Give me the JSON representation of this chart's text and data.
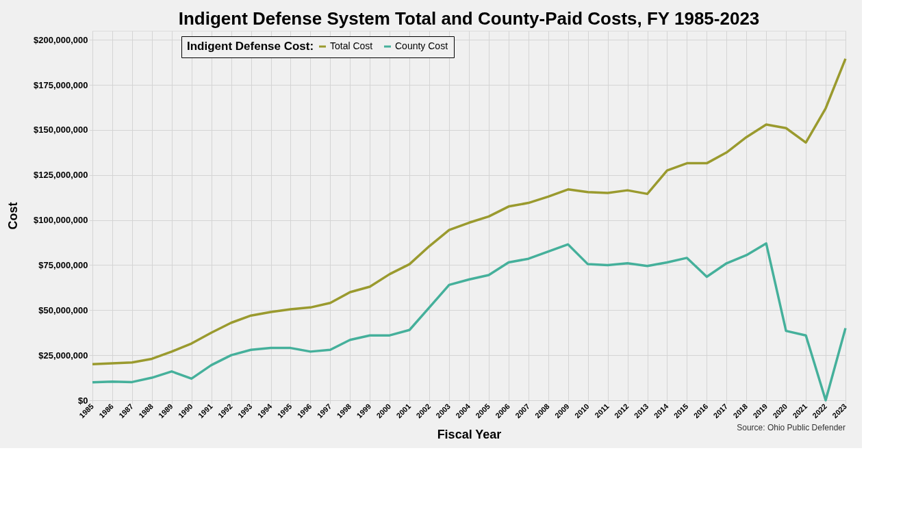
{
  "chart_data": {
    "type": "line",
    "title": "Indigent Defense System Total and County-Paid Costs, FY 1985-2023",
    "xlabel": "Fiscal Year",
    "ylabel": "Cost",
    "legend_title": "Indigent Defense Cost:",
    "legend": "top left",
    "grid": true,
    "line_style": "solid",
    "marker": "none",
    "categories": [
      "1985",
      "1986",
      "1987",
      "1988",
      "1989",
      "1990",
      "1991",
      "1992",
      "1993",
      "1994",
      "1995",
      "1996",
      "1997",
      "1998",
      "1999",
      "2000",
      "2001",
      "2002",
      "2003",
      "2004",
      "2005",
      "2006",
      "2007",
      "2008",
      "2009",
      "2010",
      "2011",
      "2012",
      "2013",
      "2014",
      "2015",
      "2016",
      "2017",
      "2018",
      "2019",
      "2020",
      "2021",
      "2022",
      "2023"
    ],
    "series": [
      {
        "name": "Total Cost",
        "color": "#9a9a2e",
        "values": [
          20000000,
          20500000,
          21000000,
          23000000,
          27000000,
          31500000,
          37500000,
          43000000,
          47000000,
          49000000,
          50500000,
          51500000,
          54000000,
          60000000,
          63000000,
          70000000,
          75500000,
          85500000,
          94500000,
          98500000,
          102000000,
          107500000,
          109500000,
          113000000,
          117000000,
          115500000,
          115000000,
          116500000,
          114500000,
          127500000,
          131500000,
          131500000,
          137500000,
          146000000,
          153000000,
          151000000,
          143000000,
          162000000,
          189500000
        ]
      },
      {
        "name": "County Cost",
        "color": "#45b09b",
        "values": [
          10000000,
          10300000,
          10100000,
          12500000,
          16000000,
          12000000,
          19500000,
          25000000,
          28000000,
          29000000,
          29000000,
          27000000,
          28000000,
          33500000,
          36000000,
          36000000,
          39000000,
          51500000,
          64000000,
          67000000,
          69500000,
          76500000,
          78500000,
          82500000,
          86500000,
          75500000,
          75000000,
          76000000,
          74500000,
          76500000,
          79000000,
          68500000,
          76000000,
          80500000,
          87000000,
          38500000,
          36000000,
          0,
          40000000
        ]
      }
    ],
    "ylim": [
      0,
      205000000
    ],
    "yticks": [
      {
        "value": 0,
        "label": "$0"
      },
      {
        "value": 25000000,
        "label": "$25,000,000"
      },
      {
        "value": 50000000,
        "label": "$50,000,000"
      },
      {
        "value": 75000000,
        "label": "$75,000,000"
      },
      {
        "value": 100000000,
        "label": "$100,000,000"
      },
      {
        "value": 125000000,
        "label": "$125,000,000"
      },
      {
        "value": 150000000,
        "label": "$150,000,000"
      },
      {
        "value": 175000000,
        "label": "$175,000,000"
      },
      {
        "value": 200000000,
        "label": "$200,000,000"
      }
    ],
    "annotations": [
      "Source: Ohio Public Defender"
    ]
  }
}
